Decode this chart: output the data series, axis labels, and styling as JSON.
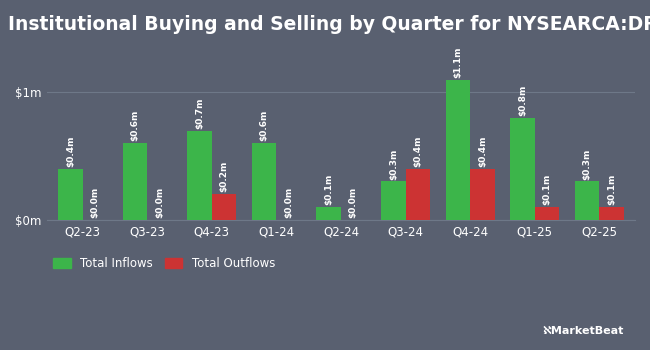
{
  "title": "Institutional Buying and Selling by Quarter for NYSEARCA:DRN",
  "quarters": [
    "Q2-23",
    "Q3-23",
    "Q4-23",
    "Q1-24",
    "Q2-24",
    "Q3-24",
    "Q4-24",
    "Q1-25",
    "Q2-25"
  ],
  "inflows": [
    0.4,
    0.6,
    0.7,
    0.6,
    0.1,
    0.3,
    1.1,
    0.8,
    0.3
  ],
  "outflows": [
    0.0,
    0.0,
    0.2,
    0.0,
    0.0,
    0.4,
    0.4,
    0.1,
    0.1
  ],
  "inflow_labels": [
    "$0.4m",
    "$0.6m",
    "$0.7m",
    "$0.6m",
    "$0.1m",
    "$0.3m",
    "$1.1m",
    "$0.8m",
    "$0.3m"
  ],
  "outflow_labels": [
    "$0.0m",
    "$0.0m",
    "$0.2m",
    "$0.0m",
    "$0.0m",
    "$0.4m",
    "$0.4m",
    "$0.1m",
    "$0.1m"
  ],
  "bar_color_green": "#3cb54a",
  "bar_color_red": "#cc3333",
  "background_color": "#596070",
  "text_color": "#ffffff",
  "grid_color": "#6e7888",
  "ytick_labels": [
    "$0m",
    "$1m"
  ],
  "ytick_values": [
    0.0,
    1.0
  ],
  "ylim": [
    0,
    1.38
  ],
  "bar_width": 0.38,
  "title_fontsize": 13.5,
  "label_fontsize": 6.5,
  "tick_fontsize": 8.5,
  "legend_fontsize": 8.5
}
